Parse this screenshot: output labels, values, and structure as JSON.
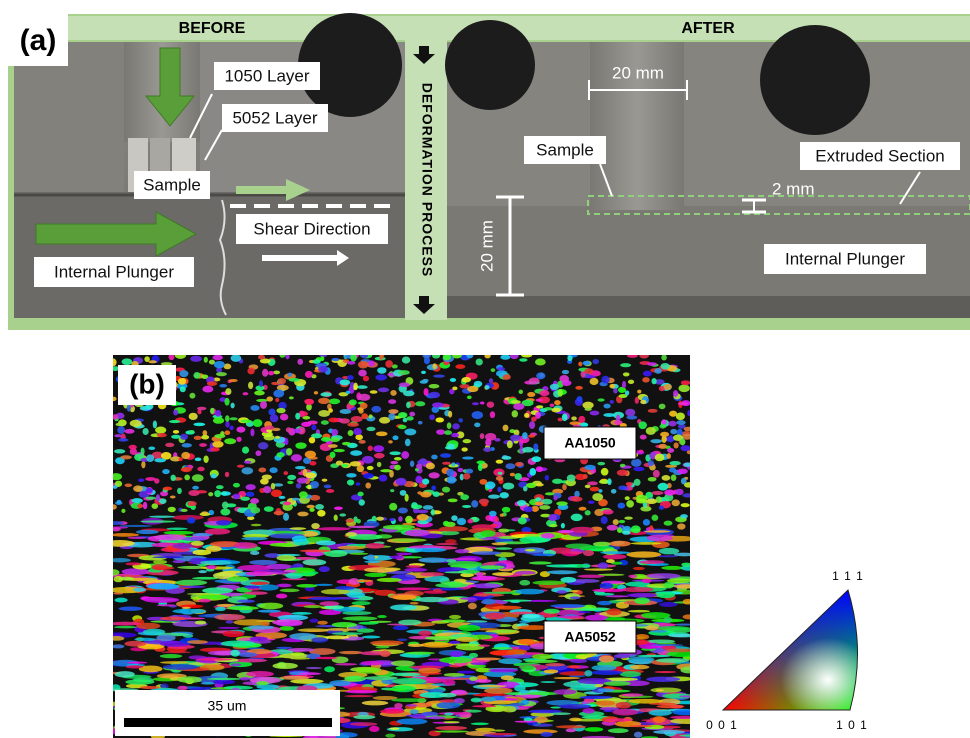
{
  "panel_a": {
    "label": "(a)",
    "before": {
      "title": "BEFORE",
      "layer_1050": "1050 Layer",
      "layer_5052": "5052 Layer",
      "sample": "Sample",
      "shear": "Shear Direction",
      "plunger": "Internal Plunger"
    },
    "process": "DEFORMATION PROCESS",
    "after": {
      "title": "AFTER",
      "width": "20 mm",
      "sample": "Sample",
      "extruded": "Extruded Section",
      "thickness": "2 mm",
      "height": "20 mm",
      "plunger": "Internal Plunger"
    }
  },
  "panel_b": {
    "label": "(b)",
    "region_top": "AA1050",
    "region_bottom": "AA5052",
    "scale_bar": "35 um",
    "legend": {
      "top": "1 1 1",
      "left": "0 0 1",
      "right": "1 0 1"
    }
  }
}
